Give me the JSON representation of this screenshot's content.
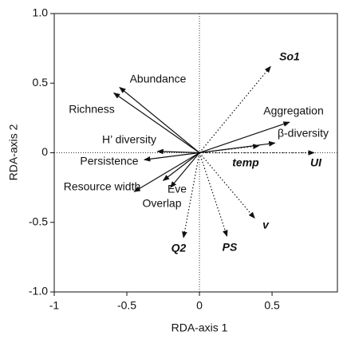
{
  "chart_data": {
    "type": "biplot",
    "x_label": "RDA-axis 1",
    "y_label": "RDA-axis 2",
    "xlim": [
      -1,
      0.95
    ],
    "ylim": [
      -1,
      1
    ],
    "xticks": [
      -1,
      -0.5,
      0,
      0.5
    ],
    "yticks": [
      {
        "value": -1,
        "label": "-1.0"
      },
      -0.5,
      0,
      0.5,
      {
        "value": 1,
        "label": "1.0"
      }
    ],
    "arrows": [
      {
        "label": "Abundance",
        "x": -0.55,
        "y": 0.47,
        "style": "solid"
      },
      {
        "label": "Richness",
        "x": -0.59,
        "y": 0.43,
        "style": "solid"
      },
      {
        "label": "H’ diversity",
        "x": -0.29,
        "y": 0.01,
        "style": "solid"
      },
      {
        "label": "Persistence",
        "x": -0.38,
        "y": -0.05,
        "style": "solid"
      },
      {
        "label": "Resource width",
        "x": -0.45,
        "y": -0.28,
        "style": "solid"
      },
      {
        "label": "Eve",
        "x": -0.25,
        "y": -0.2,
        "style": "solid"
      },
      {
        "label": "Overlap",
        "x": -0.2,
        "y": -0.25,
        "style": "solid"
      },
      {
        "label": "Aggregation",
        "x": 0.62,
        "y": 0.22,
        "style": "solid"
      },
      {
        "label": "β-diversity",
        "x": 0.52,
        "y": 0.07,
        "style": "solid"
      },
      {
        "label": "temp",
        "x": 0.41,
        "y": 0.05,
        "style": "dotted"
      },
      {
        "label": "So1",
        "x": 0.49,
        "y": 0.62,
        "style": "dotted"
      },
      {
        "label": "UI",
        "x": 0.79,
        "y": 0.0,
        "style": "dotted"
      },
      {
        "label": "v",
        "x": 0.38,
        "y": -0.47,
        "style": "dotted"
      },
      {
        "label": "PS",
        "x": 0.19,
        "y": -0.6,
        "style": "dotted"
      },
      {
        "label": "Q2",
        "x": -0.11,
        "y": -0.61,
        "style": "dotted"
      }
    ]
  }
}
